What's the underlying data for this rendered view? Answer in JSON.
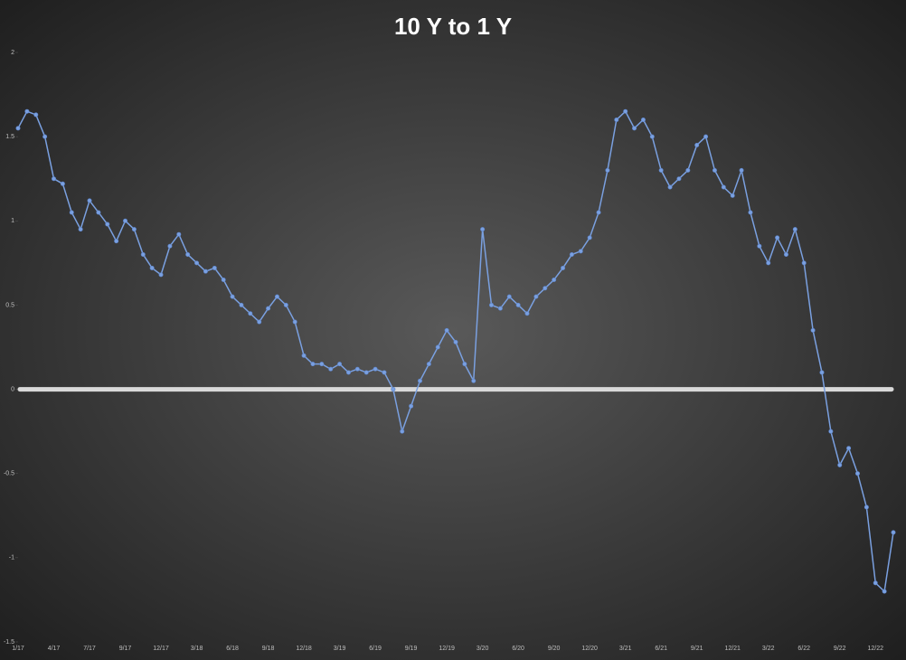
{
  "chart_data": {
    "type": "line",
    "title": "10 Y to 1 Y",
    "categories": [
      "1/17",
      null,
      null,
      null,
      "4/17",
      null,
      null,
      null,
      "7/17",
      null,
      null,
      null,
      "9/17",
      null,
      null,
      null,
      "12/17",
      null,
      null,
      null,
      "3/18",
      null,
      null,
      null,
      "6/18",
      null,
      null,
      null,
      "9/18",
      null,
      null,
      null,
      "12/18",
      null,
      null,
      null,
      "3/19",
      null,
      null,
      null,
      "6/19",
      null,
      null,
      null,
      "9/19",
      null,
      null,
      null,
      "12/19",
      null,
      null,
      null,
      "3/20",
      null,
      null,
      null,
      "6/20",
      null,
      null,
      null,
      "9/20",
      null,
      null,
      null,
      "12/20",
      null,
      null,
      null,
      "3/21",
      null,
      null,
      null,
      "6/21",
      null,
      null,
      null,
      "9/21",
      null,
      null,
      null,
      "12/21",
      null,
      null,
      null,
      "3/22",
      null,
      null,
      null,
      "6/22",
      null,
      null,
      null,
      "9/22",
      null,
      null,
      null,
      "12/22",
      null,
      null
    ],
    "series": [
      {
        "name": "10 Y to 1 Y",
        "color": "#7aa0e0",
        "values": [
          1.55,
          1.65,
          1.63,
          1.5,
          1.25,
          1.22,
          1.05,
          0.95,
          1.12,
          1.05,
          0.98,
          0.88,
          1.0,
          0.95,
          0.8,
          0.72,
          0.68,
          0.85,
          0.92,
          0.8,
          0.75,
          0.7,
          0.72,
          0.65,
          0.55,
          0.5,
          0.45,
          0.4,
          0.48,
          0.55,
          0.5,
          0.4,
          0.2,
          0.15,
          0.15,
          0.12,
          0.15,
          0.1,
          0.12,
          0.1,
          0.12,
          0.1,
          0.0,
          -0.25,
          -0.1,
          0.05,
          0.15,
          0.25,
          0.35,
          0.28,
          0.15,
          0.05,
          0.95,
          0.5,
          0.48,
          0.55,
          0.5,
          0.45,
          0.55,
          0.6,
          0.65,
          0.72,
          0.8,
          0.82,
          0.9,
          1.05,
          1.3,
          1.6,
          1.65,
          1.55,
          1.6,
          1.5,
          1.3,
          1.2,
          1.25,
          1.3,
          1.45,
          1.5,
          1.3,
          1.2,
          1.15,
          1.3,
          1.05,
          0.85,
          0.75,
          0.9,
          0.8,
          0.95,
          0.75,
          0.35,
          0.1,
          -0.25,
          -0.45,
          -0.35,
          -0.5,
          -0.7,
          -1.15,
          -1.2,
          -0.85
        ]
      }
    ],
    "ylim": [
      -1.5,
      2
    ],
    "yticks": [
      -1.5,
      -1,
      -0.5,
      0,
      0.5,
      1,
      1.5,
      2
    ],
    "reference_line": 0,
    "reference_color": "#d9d9d9",
    "grid": false
  }
}
